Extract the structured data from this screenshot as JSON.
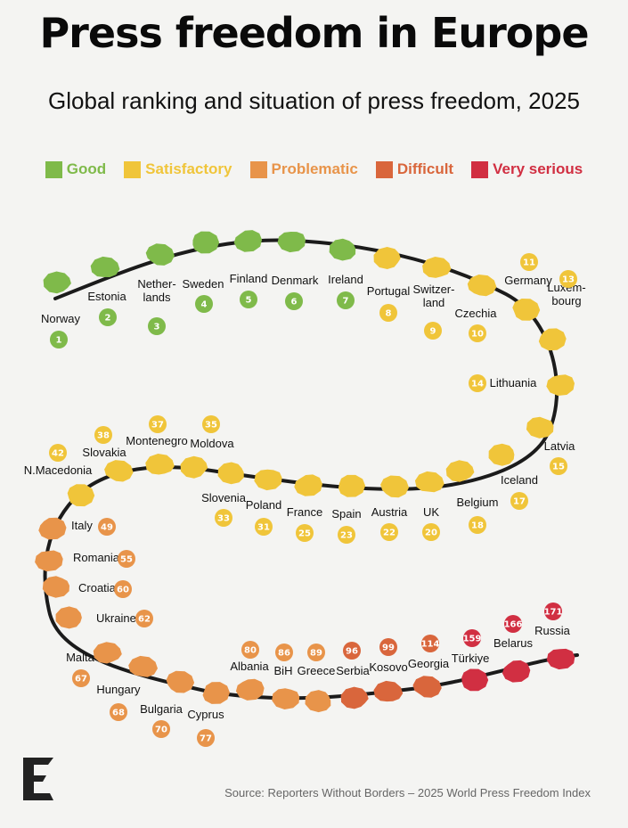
{
  "title": "Press freedom in Europe",
  "subtitle": "Global ranking and situation of press freedom, 2025",
  "legend": [
    {
      "key": "good",
      "label": "Good",
      "color": "#7fba4a"
    },
    {
      "key": "satisfactory",
      "label": "Satisfactory",
      "color": "#f0c53a"
    },
    {
      "key": "problematic",
      "label": "Problematic",
      "color": "#e8944a"
    },
    {
      "key": "difficult",
      "label": "Difficult",
      "color": "#d9663c"
    },
    {
      "key": "very_serious",
      "label": "Very serious",
      "color": "#d12f42"
    }
  ],
  "source": "Source: Reporters Without Borders – 2025 World Press Freedom Index",
  "chart_data": {
    "type": "table",
    "title": "Press freedom in Europe",
    "subtitle": "Global ranking and situation of press freedom, 2025",
    "columns": [
      "country",
      "rank",
      "situation"
    ],
    "rows": [
      {
        "country": "Norway",
        "rank": 1,
        "situation": "good"
      },
      {
        "country": "Estonia",
        "rank": 2,
        "situation": "good"
      },
      {
        "country": "Nether-|lands",
        "rank": 3,
        "situation": "good"
      },
      {
        "country": "Sweden",
        "rank": 4,
        "situation": "good"
      },
      {
        "country": "Finland",
        "rank": 5,
        "situation": "good"
      },
      {
        "country": "Denmark",
        "rank": 6,
        "situation": "good"
      },
      {
        "country": "Ireland",
        "rank": 7,
        "situation": "good"
      },
      {
        "country": "Portugal",
        "rank": 8,
        "situation": "satisfactory"
      },
      {
        "country": "Switzer-|land",
        "rank": 9,
        "situation": "satisfactory"
      },
      {
        "country": "Czechia",
        "rank": 10,
        "situation": "satisfactory"
      },
      {
        "country": "Germany",
        "rank": 11,
        "situation": "satisfactory"
      },
      {
        "country": "Luxem-|bourg",
        "rank": 13,
        "situation": "satisfactory"
      },
      {
        "country": "Lithuania",
        "rank": 14,
        "situation": "satisfactory"
      },
      {
        "country": "Latvia",
        "rank": 15,
        "situation": "satisfactory"
      },
      {
        "country": "Iceland",
        "rank": 17,
        "situation": "satisfactory"
      },
      {
        "country": "Belgium",
        "rank": 18,
        "situation": "satisfactory"
      },
      {
        "country": "UK",
        "rank": 20,
        "situation": "satisfactory"
      },
      {
        "country": "Austria",
        "rank": 22,
        "situation": "satisfactory"
      },
      {
        "country": "Spain",
        "rank": 23,
        "situation": "satisfactory"
      },
      {
        "country": "France",
        "rank": 25,
        "situation": "satisfactory"
      },
      {
        "country": "Poland",
        "rank": 31,
        "situation": "satisfactory"
      },
      {
        "country": "Slovenia",
        "rank": 33,
        "situation": "satisfactory"
      },
      {
        "country": "Moldova",
        "rank": 35,
        "situation": "satisfactory"
      },
      {
        "country": "Montenegro",
        "rank": 37,
        "situation": "satisfactory"
      },
      {
        "country": "Slovakia",
        "rank": 38,
        "situation": "satisfactory"
      },
      {
        "country": "N.Macedonia",
        "rank": 42,
        "situation": "satisfactory"
      },
      {
        "country": "Italy",
        "rank": 49,
        "situation": "problematic"
      },
      {
        "country": "Romania",
        "rank": 55,
        "situation": "problematic"
      },
      {
        "country": "Croatia",
        "rank": 60,
        "situation": "problematic"
      },
      {
        "country": "Ukraine",
        "rank": 62,
        "situation": "problematic"
      },
      {
        "country": "Malta",
        "rank": 67,
        "situation": "problematic"
      },
      {
        "country": "Hungary",
        "rank": 68,
        "situation": "problematic"
      },
      {
        "country": "Bulgaria",
        "rank": 70,
        "situation": "problematic"
      },
      {
        "country": "Cyprus",
        "rank": 77,
        "situation": "problematic"
      },
      {
        "country": "Albania",
        "rank": 80,
        "situation": "problematic"
      },
      {
        "country": "BiH",
        "rank": 86,
        "situation": "problematic"
      },
      {
        "country": "Greece",
        "rank": 89,
        "situation": "problematic"
      },
      {
        "country": "Serbia",
        "rank": 96,
        "situation": "difficult"
      },
      {
        "country": "Kosovo",
        "rank": 99,
        "situation": "difficult"
      },
      {
        "country": "Georgia",
        "rank": 114,
        "situation": "difficult"
      },
      {
        "country": "Türkiye",
        "rank": 159,
        "situation": "very_serious"
      },
      {
        "country": "Belarus",
        "rank": 166,
        "situation": "very_serious"
      },
      {
        "country": "Russia",
        "rank": 171,
        "situation": "very_serious"
      }
    ]
  }
}
